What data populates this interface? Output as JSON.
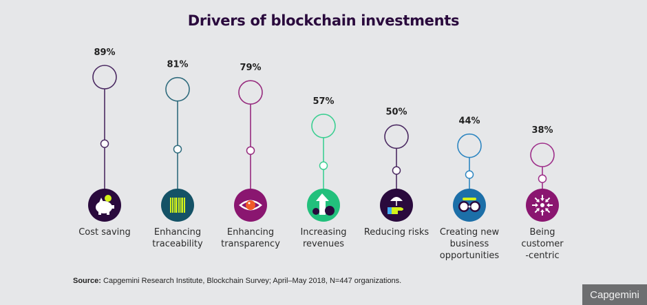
{
  "chart_data": {
    "type": "lollipop",
    "title": "Drivers of blockchain investments",
    "unit": "%",
    "categories": [
      {
        "label_lines": [
          "Cost saving"
        ],
        "value": 89,
        "value_label": "89%",
        "color": "#4b2a62",
        "icon": "piggy-bank-icon",
        "icon_bg": "#2a0a3d"
      },
      {
        "label_lines": [
          "Enhancing",
          "traceability"
        ],
        "value": 81,
        "value_label": "81%",
        "color": "#2f6b7d",
        "icon": "barcode-icon",
        "icon_bg": "#145266"
      },
      {
        "label_lines": [
          "Enhancing",
          "transparency"
        ],
        "value": 79,
        "value_label": "79%",
        "color": "#962b7e",
        "icon": "eye-icon",
        "icon_bg": "#8a1670"
      },
      {
        "label_lines": [
          "Increasing",
          "revenues"
        ],
        "value": 57,
        "value_label": "57%",
        "color": "#3ccf92",
        "icon": "rising-money-icon",
        "icon_bg": "#22c07c"
      },
      {
        "label_lines": [
          "Reducing risks"
        ],
        "value": 50,
        "value_label": "50%",
        "color": "#4b2a62",
        "icon": "umbrella-hand-icon",
        "icon_bg": "#2a0a3d"
      },
      {
        "label_lines": [
          "Creating new",
          "business",
          "opportunities"
        ],
        "value": 44,
        "value_label": "44%",
        "color": "#2e86c1",
        "icon": "binoculars-icon",
        "icon_bg": "#1c6fa8"
      },
      {
        "label_lines": [
          "Being",
          "customer",
          "-centric"
        ],
        "value": 38,
        "value_label": "38%",
        "color": "#9e2f8a",
        "icon": "converging-arrows-icon",
        "icon_bg": "#8a1670"
      }
    ]
  },
  "footer": {
    "source_label": "Source:",
    "source_text": " Capgemini Research Institute, Blockchain Survey; April–May 2018, N=447 organizations.",
    "brand": "Capgemini"
  }
}
